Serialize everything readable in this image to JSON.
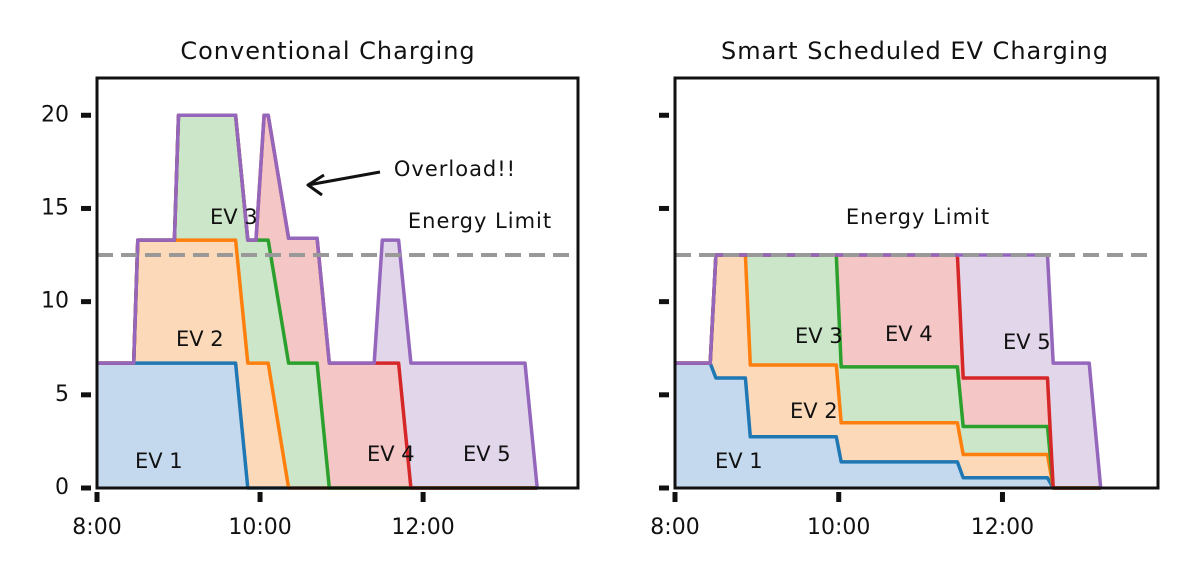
{
  "chart_data": [
    {
      "type": "area",
      "stacked": true,
      "title": "Conventional Charging",
      "x": [
        8.0,
        8.45,
        8.5,
        8.95,
        9.0,
        9.7,
        9.85,
        9.95,
        10.05,
        10.1,
        10.35,
        10.7,
        10.85,
        11.4,
        11.5,
        11.7,
        11.85,
        13.25,
        13.4
      ],
      "series": [
        {
          "name": "EV 1",
          "color": "#1f77b4",
          "fill": "#c5d9ee",
          "values": [
            6.7,
            6.7,
            6.7,
            6.7,
            6.7,
            6.7,
            0,
            0,
            0,
            0,
            0,
            0,
            0,
            0,
            0,
            0,
            0,
            0,
            0
          ]
        },
        {
          "name": "EV 2",
          "color": "#ff7f0e",
          "fill": "#fcd9b8",
          "values": [
            0,
            0,
            6.6,
            6.6,
            6.6,
            6.6,
            6.7,
            6.7,
            6.7,
            6.7,
            0,
            0,
            0,
            0,
            0,
            0,
            0,
            0,
            0
          ]
        },
        {
          "name": "EV 3",
          "color": "#2ca02c",
          "fill": "#cbe6c8",
          "values": [
            0,
            0,
            0,
            0,
            6.7,
            6.7,
            6.6,
            6.6,
            6.6,
            6.6,
            6.7,
            6.7,
            0,
            0,
            0,
            0,
            0,
            0,
            0
          ]
        },
        {
          "name": "EV 4",
          "color": "#d62728",
          "fill": "#f4c6c6",
          "values": [
            0,
            0,
            0,
            0,
            0,
            0,
            0,
            0,
            6.7,
            6.7,
            6.7,
            6.7,
            6.7,
            6.7,
            6.7,
            6.7,
            0,
            0,
            0
          ]
        },
        {
          "name": "EV 5",
          "color": "#9467bd",
          "fill": "#e2d6ea",
          "values": [
            0,
            0,
            0,
            0,
            0,
            0,
            0,
            0,
            0,
            0,
            0,
            0,
            0,
            0,
            6.6,
            6.6,
            6.7,
            6.7,
            0
          ]
        }
      ],
      "xlim": [
        8,
        13.9
      ],
      "xticks": [
        {
          "value": 8,
          "label": "8:00"
        },
        {
          "value": 10,
          "label": "10:00"
        },
        {
          "value": 12,
          "label": "12:00"
        }
      ],
      "ylim": [
        0,
        22
      ],
      "yticks": [
        0,
        5,
        10,
        15,
        20
      ],
      "ytick_labels": true,
      "limit": 12.5,
      "limit_label": "Energy Limit",
      "annotation": "Overload!!"
    },
    {
      "type": "area",
      "stacked": true,
      "title": "Smart Scheduled EV Charging",
      "x": [
        8.0,
        8.43,
        8.5,
        8.86,
        8.92,
        9.97,
        10.03,
        11.45,
        11.52,
        12.55,
        12.62,
        13.06,
        13.2
      ],
      "series": [
        {
          "name": "EV 1",
          "color": "#1f77b4",
          "fill": "#c5d9ee",
          "values": [
            6.7,
            6.7,
            5.9,
            5.9,
            2.75,
            2.75,
            1.4,
            1.4,
            0.55,
            0.55,
            0,
            0,
            0
          ]
        },
        {
          "name": "EV 2",
          "color": "#ff7f0e",
          "fill": "#fcd9b8",
          "values": [
            0,
            0,
            6.6,
            6.6,
            3.85,
            3.85,
            2.1,
            2.1,
            1.25,
            1.25,
            0,
            0,
            0
          ]
        },
        {
          "name": "EV 3",
          "color": "#2ca02c",
          "fill": "#cbe6c8",
          "values": [
            0,
            0,
            0,
            0,
            5.9,
            5.9,
            3.0,
            3.0,
            1.5,
            1.5,
            0,
            0,
            0
          ]
        },
        {
          "name": "EV 4",
          "color": "#d62728",
          "fill": "#f4c6c6",
          "values": [
            0,
            0,
            0,
            0,
            0,
            0,
            6.0,
            6.0,
            2.6,
            2.6,
            0,
            0,
            0
          ]
        },
        {
          "name": "EV 5",
          "color": "#9467bd",
          "fill": "#e2d6ea",
          "values": [
            0,
            0,
            0,
            0,
            0,
            0,
            0,
            0,
            6.6,
            6.6,
            6.7,
            6.7,
            0
          ]
        }
      ],
      "xlim": [
        8,
        13.9
      ],
      "xticks": [
        {
          "value": 8,
          "label": "8:00"
        },
        {
          "value": 10,
          "label": "10:00"
        },
        {
          "value": 12,
          "label": "12:00"
        }
      ],
      "ylim": [
        0,
        22
      ],
      "yticks": [
        0,
        5,
        10,
        15,
        20
      ],
      "ytick_labels": false,
      "limit": 12.5,
      "limit_label": "Energy Limit"
    }
  ]
}
